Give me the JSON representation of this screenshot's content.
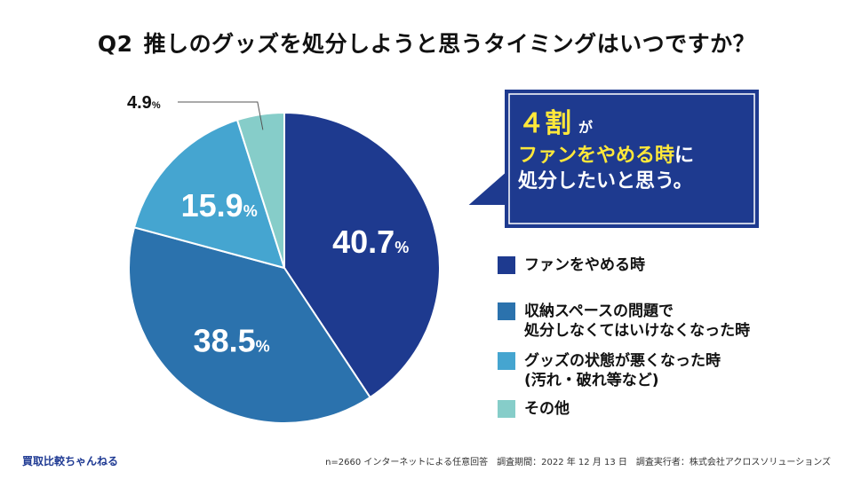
{
  "header": {
    "qnum": "Q2",
    "title": "推しのグッズを処分しようと思うタイミングはいつですか？"
  },
  "chart_data": {
    "type": "pie",
    "title": "推しのグッズを処分しようと思うタイミングはいつですか？",
    "slices": [
      {
        "label": "ファンをやめる時",
        "value": 40.7,
        "display": "40.7",
        "color": "#1e3a8f"
      },
      {
        "label": "収納スペースの問題で\n処分しなくてはいけなくなった時",
        "value": 38.5,
        "display": "38.5",
        "color": "#2b72ad"
      },
      {
        "label": "グッズの状態が悪くなった時\n(汚れ・破れ等など)",
        "value": 15.9,
        "display": "15.9",
        "color": "#45a5d0"
      },
      {
        "label": "その他",
        "value": 4.9,
        "display": "4.9",
        "color": "#86cdc9"
      }
    ],
    "unit": "%",
    "legend_position": "right"
  },
  "callout": {
    "big": "４割",
    "small": "が",
    "line2_yellow": "ファンをやめる時",
    "line2_rest": "に",
    "line3": "処分したいと思う。",
    "bg_color": "#1e3a8f",
    "text_accent": "#ffe83a"
  },
  "footer": {
    "brand": "買取比較ちゃんねる",
    "note": "n=2660 インターネットによる任意回答　調査期間：2022 年 12 月 13 日　調査実行者：株式会社アクロスソリューションズ"
  }
}
